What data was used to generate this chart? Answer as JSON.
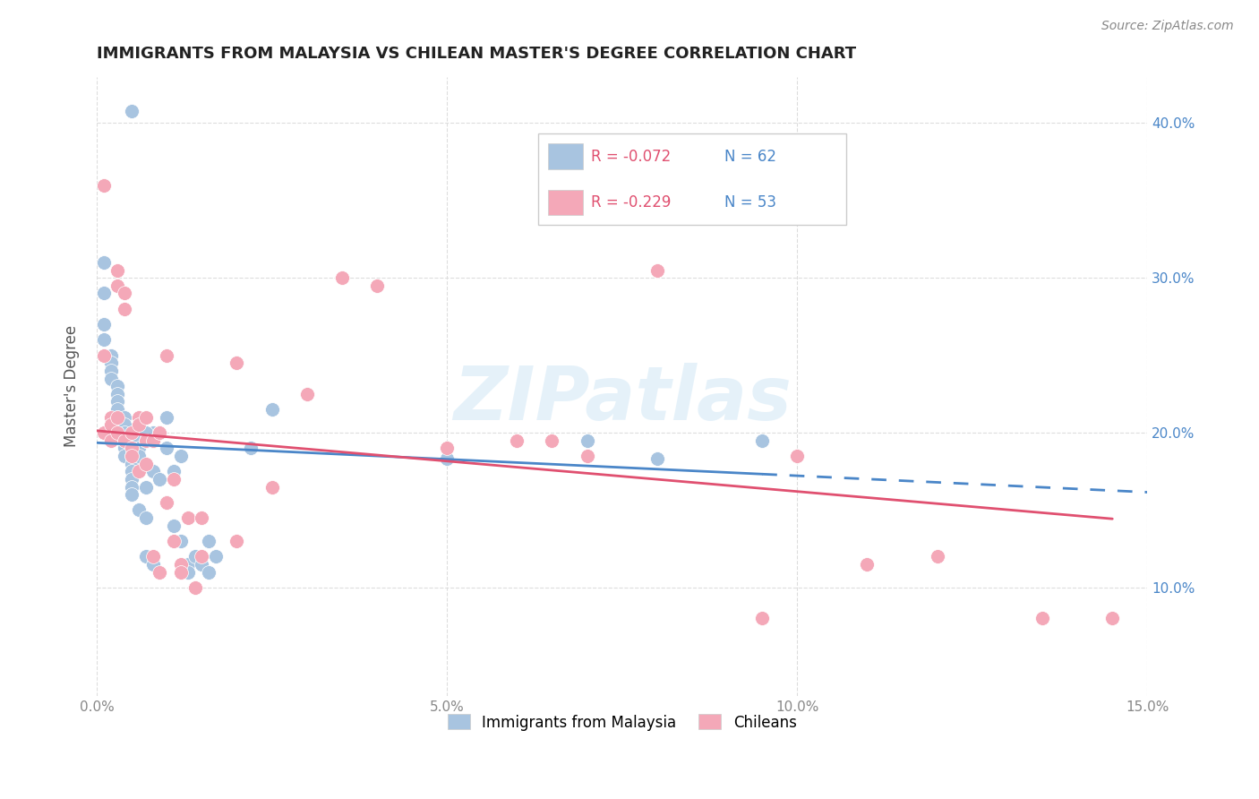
{
  "title": "IMMIGRANTS FROM MALAYSIA VS CHILEAN MASTER'S DEGREE CORRELATION CHART",
  "source": "Source: ZipAtlas.com",
  "ylabel": "Master's Degree",
  "xlim": [
    0.0,
    0.15
  ],
  "ylim": [
    0.03,
    0.43
  ],
  "legend_label1": "Immigrants from Malaysia",
  "legend_label2": "Chileans",
  "r1": -0.072,
  "n1": 62,
  "r2": -0.229,
  "n2": 53,
  "color_blue": "#a8c4e0",
  "color_pink": "#f4a8b8",
  "trendline_blue": "#4a86c8",
  "trendline_pink": "#e05070",
  "watermark": "ZIPatlas",
  "blue_scatter_x": [
    0.005,
    0.008,
    0.001,
    0.001,
    0.001,
    0.001,
    0.002,
    0.002,
    0.002,
    0.002,
    0.003,
    0.003,
    0.003,
    0.003,
    0.003,
    0.004,
    0.004,
    0.004,
    0.004,
    0.004,
    0.004,
    0.005,
    0.005,
    0.005,
    0.005,
    0.005,
    0.005,
    0.006,
    0.006,
    0.006,
    0.006,
    0.007,
    0.007,
    0.007,
    0.007,
    0.007,
    0.008,
    0.008,
    0.008,
    0.009,
    0.009,
    0.01,
    0.01,
    0.01,
    0.011,
    0.011,
    0.012,
    0.012,
    0.013,
    0.013,
    0.014,
    0.015,
    0.016,
    0.016,
    0.017,
    0.02,
    0.022,
    0.025,
    0.05,
    0.07,
    0.08,
    0.095
  ],
  "blue_scatter_y": [
    0.408,
    0.2,
    0.31,
    0.29,
    0.27,
    0.26,
    0.25,
    0.245,
    0.24,
    0.235,
    0.23,
    0.225,
    0.22,
    0.215,
    0.21,
    0.21,
    0.205,
    0.2,
    0.195,
    0.19,
    0.185,
    0.185,
    0.18,
    0.175,
    0.17,
    0.165,
    0.16,
    0.195,
    0.19,
    0.185,
    0.15,
    0.2,
    0.195,
    0.165,
    0.145,
    0.12,
    0.195,
    0.175,
    0.115,
    0.2,
    0.17,
    0.21,
    0.19,
    0.155,
    0.175,
    0.14,
    0.185,
    0.13,
    0.115,
    0.11,
    0.12,
    0.115,
    0.11,
    0.13,
    0.12,
    0.245,
    0.19,
    0.215,
    0.183,
    0.195,
    0.183,
    0.195
  ],
  "pink_scatter_x": [
    0.001,
    0.001,
    0.001,
    0.002,
    0.002,
    0.002,
    0.003,
    0.003,
    0.003,
    0.003,
    0.004,
    0.004,
    0.004,
    0.005,
    0.005,
    0.005,
    0.006,
    0.006,
    0.006,
    0.007,
    0.007,
    0.007,
    0.008,
    0.008,
    0.009,
    0.009,
    0.01,
    0.01,
    0.011,
    0.011,
    0.012,
    0.012,
    0.013,
    0.014,
    0.015,
    0.015,
    0.02,
    0.02,
    0.025,
    0.03,
    0.035,
    0.04,
    0.05,
    0.06,
    0.065,
    0.07,
    0.08,
    0.095,
    0.1,
    0.11,
    0.12,
    0.135,
    0.145
  ],
  "pink_scatter_y": [
    0.36,
    0.25,
    0.2,
    0.21,
    0.205,
    0.195,
    0.305,
    0.295,
    0.21,
    0.2,
    0.29,
    0.28,
    0.195,
    0.2,
    0.19,
    0.185,
    0.21,
    0.205,
    0.175,
    0.21,
    0.195,
    0.18,
    0.195,
    0.12,
    0.2,
    0.11,
    0.25,
    0.155,
    0.17,
    0.13,
    0.115,
    0.11,
    0.145,
    0.1,
    0.145,
    0.12,
    0.245,
    0.13,
    0.165,
    0.225,
    0.3,
    0.295,
    0.19,
    0.195,
    0.195,
    0.185,
    0.305,
    0.08,
    0.185,
    0.115,
    0.12,
    0.08,
    0.08
  ]
}
